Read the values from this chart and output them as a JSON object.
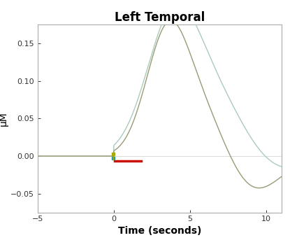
{
  "title": "Left Temporal",
  "xlabel": "Time (seconds)",
  "ylabel": "μM",
  "xlim": [
    -5,
    11
  ],
  "ylim": [
    -0.075,
    0.175
  ],
  "xticks": [
    -5,
    0,
    5,
    10
  ],
  "yticks": [
    -0.05,
    0,
    0.05,
    0.1,
    0.15
  ],
  "bg_color": "#ffffff",
  "axes_edge_color": "#aaaaaa",
  "curve_inner_color": "#9a9a78",
  "curve_outer_color": "#aaccbb",
  "stim_color": "#cc1100",
  "marker_color1": "#aaaa00",
  "marker_color2": "#2299aa",
  "title_fontsize": 12,
  "label_fontsize": 10,
  "tick_fontsize": 8
}
